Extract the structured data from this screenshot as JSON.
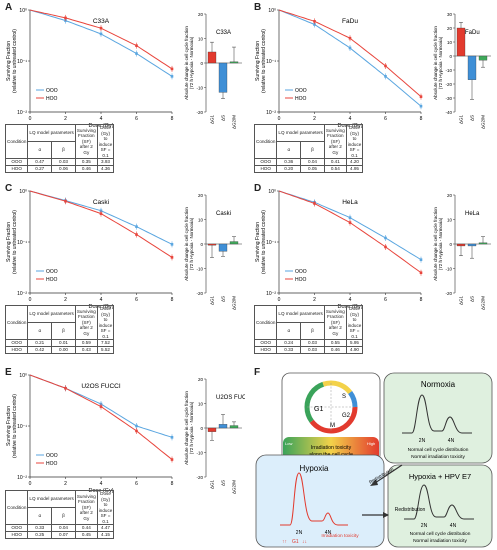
{
  "panels": [
    {
      "letter": "A",
      "cell_line": "C33A",
      "bar_values": [
        4.5,
        -12,
        0.5
      ],
      "bar_errors": [
        4,
        2.5,
        6
      ],
      "ooo_sf": [
        1,
        0.62,
        0.34,
        0.14,
        0.05
      ],
      "hoo_sf": [
        1,
        0.7,
        0.44,
        0.2,
        0.07
      ],
      "ylim_bar": [
        -20,
        20
      ],
      "bar_ticks": [
        "20",
        "10",
        "0",
        "-10",
        "-20"
      ],
      "table": {
        "ooo": [
          "0.47",
          "0.03",
          "0.35",
          "3.93"
        ],
        "hoo": [
          "0.27",
          "0.06",
          "0.46",
          "4.36"
        ]
      }
    },
    {
      "letter": "B",
      "cell_line": "FaDu",
      "bar_values": [
        20,
        -17,
        -3
      ],
      "bar_errors": [
        4,
        14,
        5
      ],
      "ooo_sf": [
        1,
        0.52,
        0.18,
        0.05,
        0.013
      ],
      "hoo_sf": [
        1,
        0.6,
        0.28,
        0.08,
        0.02
      ],
      "ylim_bar": [
        -40,
        30
      ],
      "bar_ticks": [
        "30",
        "20",
        "10",
        "0",
        "-10",
        "-20",
        "-30",
        "-40"
      ],
      "table": {
        "ooo": [
          "0.36",
          "0.04",
          "0.41",
          "4.20"
        ],
        "hoo": [
          "0.20",
          "0.05",
          "0.54",
          "4.95"
        ]
      }
    },
    {
      "letter": "C",
      "cell_line": "Caski",
      "bar_values": [
        -0.5,
        -3,
        1
      ],
      "bar_errors": [
        5,
        2,
        2
      ],
      "ooo_sf": [
        1,
        0.65,
        0.41,
        0.2,
        0.09
      ],
      "hoo_sf": [
        1,
        0.63,
        0.36,
        0.14,
        0.05
      ],
      "ylim_bar": [
        -20,
        20
      ],
      "bar_ticks": [
        "20",
        "10",
        "0",
        "-10",
        "-20"
      ],
      "table": {
        "ooo": [
          "0.21",
          "0.01",
          "0.59",
          "7.52"
        ],
        "hoo": [
          "0.42",
          "0.00",
          "0.43",
          "5.52"
        ]
      }
    },
    {
      "letter": "D",
      "cell_line": "HeLa",
      "bar_values": [
        -0.8,
        -0.8,
        0.5
      ],
      "bar_errors": [
        4,
        5,
        2.5
      ],
      "ooo_sf": [
        1,
        0.6,
        0.3,
        0.12,
        0.045
      ],
      "hoo_sf": [
        1,
        0.57,
        0.24,
        0.08,
        0.025
      ],
      "ylim_bar": [
        -20,
        20
      ],
      "bar_ticks": [
        "20",
        "10",
        "0",
        "-10",
        "-20"
      ],
      "table": {
        "ooo": [
          "0.24",
          "0.03",
          "0.55",
          "5.95"
        ],
        "hoo": [
          "0.33",
          "0.03",
          "0.46",
          "4.90"
        ]
      }
    },
    {
      "letter": "E",
      "cell_line": "U2OS FUCCI",
      "bar_values": [
        -1.5,
        1.5,
        1
      ],
      "bar_errors": [
        3.5,
        4,
        1.5
      ],
      "ooo_sf": [
        1,
        0.55,
        0.27,
        0.1,
        0.06
      ],
      "hoo_sf": [
        1,
        0.55,
        0.24,
        0.08,
        0.022
      ],
      "ylim_bar": [
        -20,
        20
      ],
      "bar_ticks": [
        "20",
        "10",
        "0",
        "-10",
        "-20"
      ],
      "table": {
        "ooo": [
          "0.33",
          "0.04",
          "0.44",
          "4.47"
        ],
        "hoo": [
          "0.25",
          "0.07",
          "0.45",
          "4.15"
        ]
      }
    }
  ],
  "common": {
    "sf_ylabel_1": "Surviving Fraction",
    "sf_ylabel_2": "(relative to untreated control)",
    "xlabel": "Dose (Gy)",
    "x_ticks": [
      "0",
      "2",
      "4",
      "6",
      "8"
    ],
    "y_ticks": [
      "10⁰",
      "10⁻¹",
      "10⁻²"
    ],
    "legend": [
      "OOO",
      "HOO"
    ],
    "bar_ylabel_1": "Absolute change in cell cycle fraction",
    "bar_ylabel_2": "(72 h Hypoxia - Normoxia)",
    "bar_categories": [
      "ΔG1",
      "ΔS",
      "ΔG2/M"
    ],
    "table_headers": {
      "condition": "Condition",
      "lq": "LQ model parameters",
      "alpha": "α",
      "beta": "β",
      "sf2": "Surviving Fraction (SF) after 2 Gy",
      "dose": "Dose (Gy) to induce SF = 0.1",
      "ooo": "OOO",
      "hoo": "HOO"
    }
  },
  "colors": {
    "ooo": "#5aa6e0",
    "hoo": "#e8453c",
    "g1": "#e23a2e",
    "s": "#3f8fd6",
    "g2m": "#3fa85a"
  },
  "panel_f": {
    "letter": "F",
    "cycle_g1": "G1",
    "cycle_s": "S",
    "cycle_g2": "G2",
    "cycle_m": "M",
    "cycle_bar_low": "Low",
    "cycle_bar_high": "High",
    "cycle_caption_1": "Irradiation toxicity",
    "cycle_caption_2": "along the cell cycle",
    "normoxia_title": "Normoxia",
    "hypoxia_title": "Hypoxia",
    "hpv_title": "Hypoxia + HPV E7",
    "peak_2n": "2N",
    "peak_4n": "4N",
    "normal_dist": "Normal cell cycle distribution",
    "normal_tox": "Normal irradiation toxicity",
    "hyp_g1": "G1",
    "hyp_tox": "Irradiation toxicity",
    "redistribution": "Redistribution"
  }
}
